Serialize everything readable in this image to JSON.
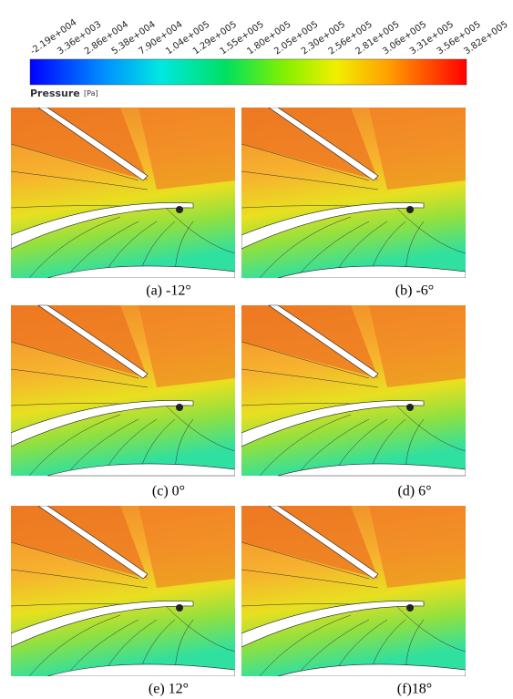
{
  "colorbar": {
    "title": "Pressure",
    "unit": "[Pa]",
    "ticks": [
      "-2.19e+004",
      "3.36e+003",
      "2.86e+004",
      "5.38e+004",
      "7.90e+004",
      "1.04e+005",
      "1.29e+005",
      "1.55e+005",
      "1.80e+005",
      "2.05e+005",
      "2.30e+005",
      "2.56e+005",
      "2.81e+005",
      "3.06e+005",
      "3.31e+005",
      "3.56e+005",
      "3.82e+005"
    ]
  },
  "panels": [
    {
      "caption": "(a) -12°"
    },
    {
      "caption": "(b) -6°"
    },
    {
      "caption": "(c) 0°"
    },
    {
      "caption": "(d) 6°"
    },
    {
      "caption": "(e) 12°"
    },
    {
      "caption": "(f)18°"
    }
  ]
}
